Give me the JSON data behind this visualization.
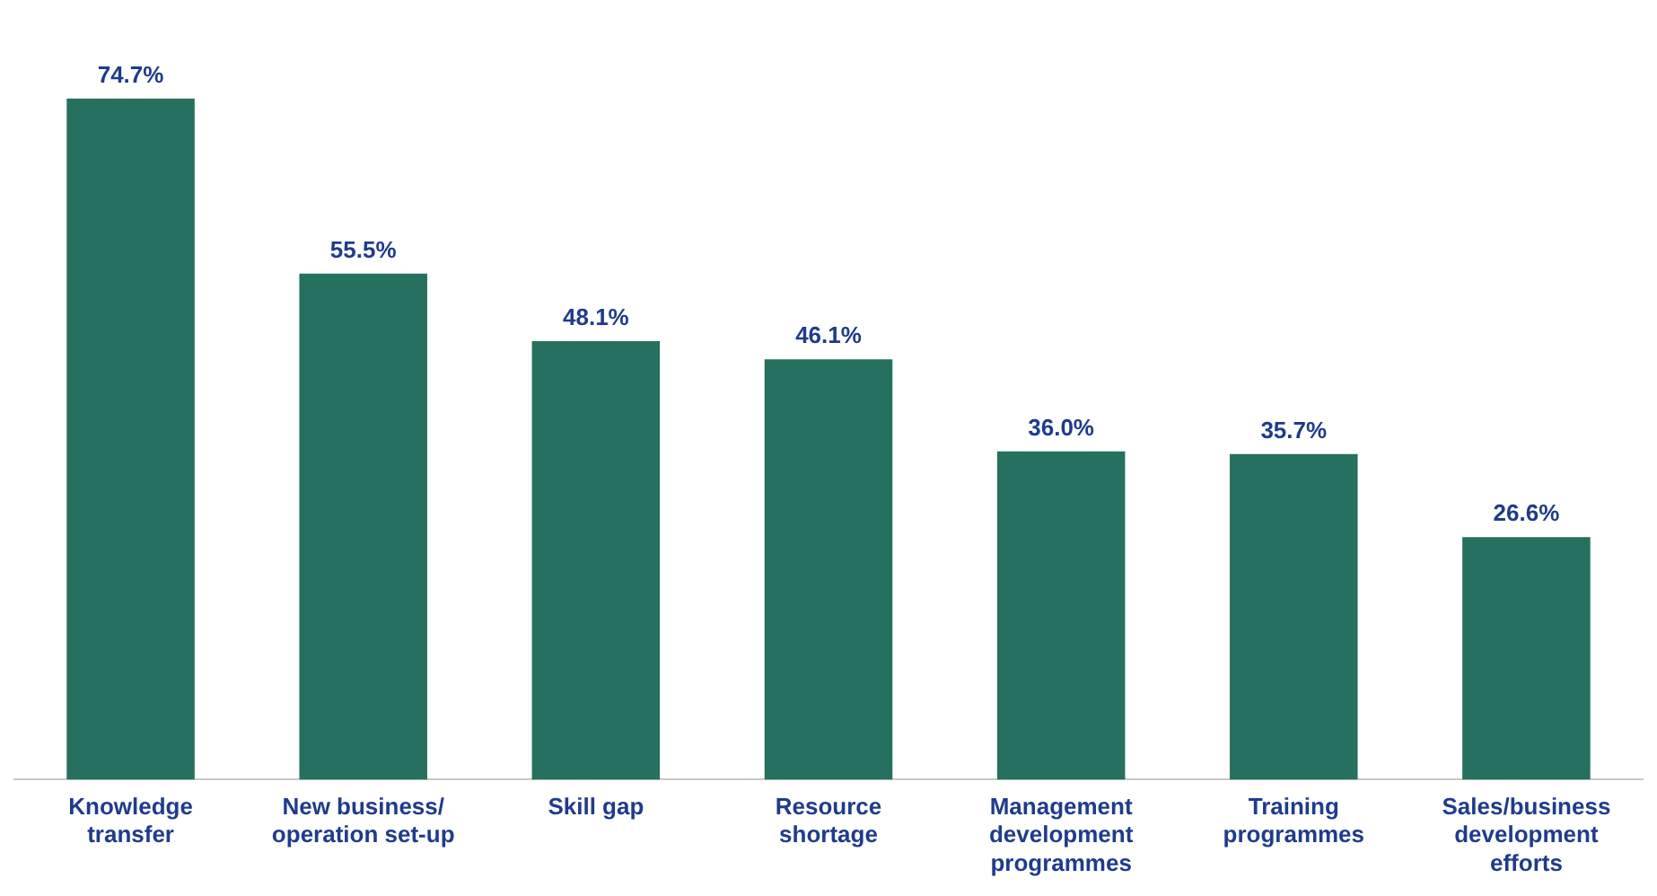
{
  "chart_data": {
    "type": "bar",
    "categories": [
      "Knowledge transfer",
      "New business/operation set-up",
      "Skill gap",
      "Resource shortage",
      "Management development programmes",
      "Training programmes",
      "Sales/business development efforts"
    ],
    "values": [
      74.7,
      55.5,
      48.1,
      46.1,
      36.0,
      35.7,
      26.6
    ],
    "value_labels": [
      "74.7%",
      "55.5%",
      "48.1%",
      "46.1%",
      "36.0%",
      "35.7%",
      "26.6%"
    ],
    "color": "#26705f",
    "grid": false,
    "legend": false
  }
}
